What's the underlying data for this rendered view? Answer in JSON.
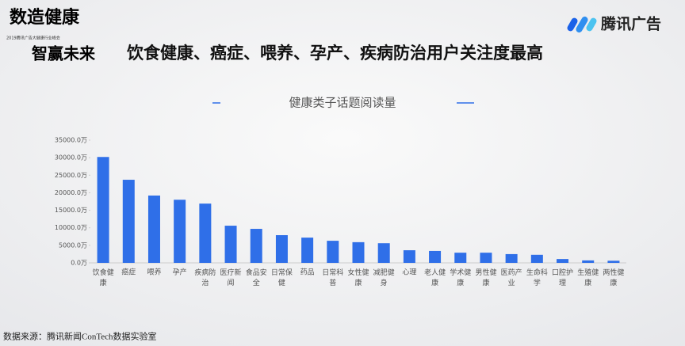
{
  "header": {
    "logo_line1": "数造健康",
    "logo_line2": "智赢未来",
    "logo_small": "2019腾讯广告大健康行业峰会",
    "brand": "腾讯广告",
    "title": "饮食健康、癌症、喂养、孕产、疾病防治用户关注度最高"
  },
  "chart_data": {
    "type": "bar",
    "title": "健康类子话题阅读量",
    "categories": [
      "饮食健康",
      "癌症",
      "喂养",
      "孕产",
      "疾病防治",
      "医疗新闻",
      "食品安全",
      "日常保健",
      "药品",
      "日常科普",
      "女性健康",
      "减肥健身",
      "心理",
      "老人健康",
      "学术健康",
      "男性健康",
      "医药产业",
      "生命科学",
      "口腔护理",
      "生殖健康",
      "两性健康"
    ],
    "values": [
      30200,
      23700,
      19200,
      18000,
      16900,
      10600,
      9700,
      7900,
      7200,
      6300,
      5900,
      5600,
      3600,
      3400,
      2900,
      2900,
      2500,
      2300,
      1100,
      700,
      600
    ],
    "color": "#2f6fe8",
    "ylim": [
      0,
      35000
    ],
    "yticks": [
      {
        "value": 0,
        "label": "0.0万"
      },
      {
        "value": 5000,
        "label": "5000.0万"
      },
      {
        "value": 10000,
        "label": "10000.0万"
      },
      {
        "value": 15000,
        "label": "15000.0万"
      },
      {
        "value": 20000,
        "label": "20000.0万"
      },
      {
        "value": 25000,
        "label": "25000.0万"
      },
      {
        "value": 30000,
        "label": "30000.0万"
      },
      {
        "value": 35000,
        "label": "35000.0万"
      }
    ],
    "grid": false
  },
  "footer": {
    "source": "数据来源：腾讯新闻ConTech数据实验室"
  }
}
